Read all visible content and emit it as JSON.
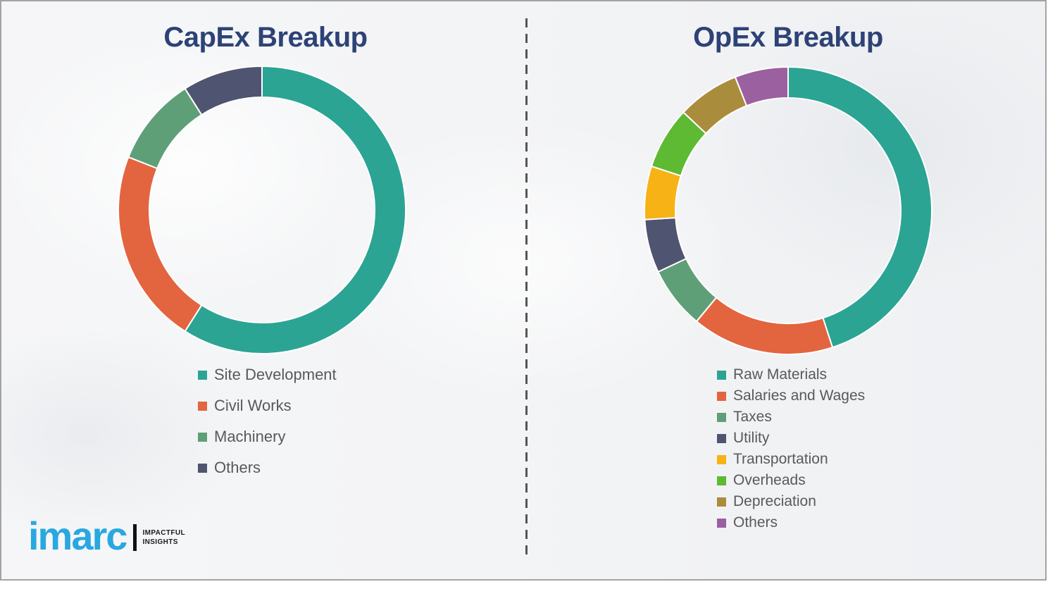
{
  "slide": {
    "background_color": "#f1f2f4",
    "border_color": "#a3a3a3",
    "divider_color": "#555555",
    "title_color": "#2d4276",
    "legend_text_color": "#595959"
  },
  "chart_data": [
    {
      "type": "pie",
      "donut": true,
      "title": "CapEx Breakup",
      "labels": [
        "Site Development",
        "Civil Works",
        "Machinery",
        "Others"
      ],
      "values": [
        59,
        22,
        10,
        9
      ],
      "colors": [
        "#2ba494",
        "#e2653f",
        "#5f9f78",
        "#4f5470"
      ],
      "values_are_estimates": true,
      "unit": "%",
      "start_angle_deg": 0,
      "direction": "clockwise",
      "legend_position": "below-left"
    },
    {
      "type": "pie",
      "donut": true,
      "title": "OpEx Breakup",
      "labels": [
        "Raw Materials",
        "Salaries and Wages",
        "Taxes",
        "Utility",
        "Transportation",
        "Overheads",
        "Depreciation",
        "Others"
      ],
      "values": [
        45,
        16,
        7,
        6,
        6,
        7,
        7,
        6
      ],
      "colors": [
        "#2ba494",
        "#e2653f",
        "#5f9f78",
        "#4f5470",
        "#f7b216",
        "#5eb933",
        "#a98d3d",
        "#9b60a0"
      ],
      "values_are_estimates": true,
      "unit": "%",
      "start_angle_deg": 0,
      "direction": "clockwise",
      "legend_position": "below-left"
    }
  ],
  "logo": {
    "brand": "imarc",
    "brand_color": "#29a8e0",
    "tagline_line1": "IMPACTFUL",
    "tagline_line2": "INSIGHTS",
    "tagline_color": "#1c1c1c"
  }
}
